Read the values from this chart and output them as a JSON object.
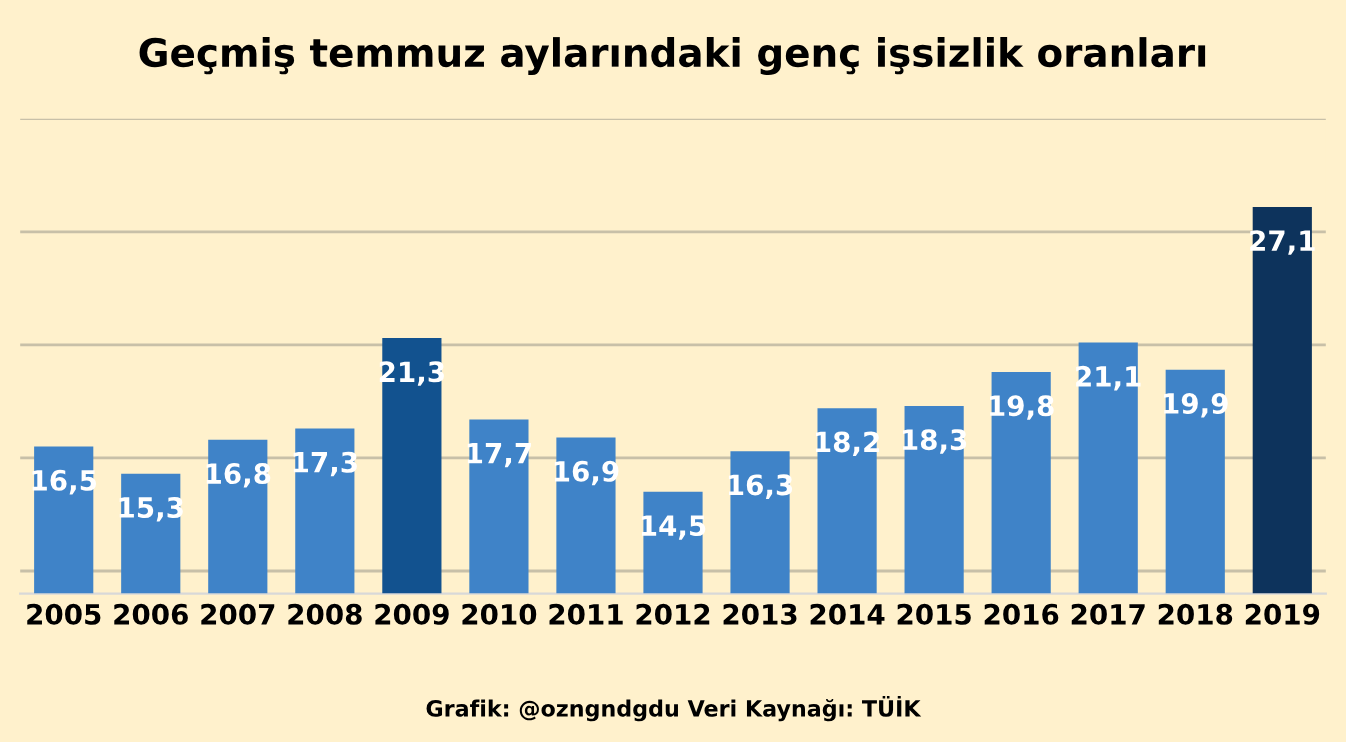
{
  "chart_data": {
    "type": "bar",
    "title": "Geçmiş temmuz aylarındaki genç işsizlik oranları",
    "categories": [
      "2005",
      "2006",
      "2007",
      "2008",
      "2009",
      "2010",
      "2011",
      "2012",
      "2013",
      "2014",
      "2015",
      "2016",
      "2017",
      "2018",
      "2019"
    ],
    "values": [
      16.5,
      15.3,
      16.8,
      17.3,
      21.3,
      17.7,
      16.9,
      14.5,
      16.3,
      18.2,
      18.3,
      19.8,
      21.1,
      19.9,
      27.1
    ],
    "value_labels": [
      "16,5",
      "15,3",
      "16,8",
      "17,3",
      "21,3",
      "17,7",
      "16,9",
      "14,5",
      "16,3",
      "18,2",
      "18,3",
      "19,8",
      "21,1",
      "19,9",
      "27,1"
    ],
    "colors": [
      "#3f83c8",
      "#3f83c8",
      "#3f83c8",
      "#3f83c8",
      "#12528f",
      "#3f83c8",
      "#3f83c8",
      "#3f83c8",
      "#3f83c8",
      "#3f83c8",
      "#3f83c8",
      "#3f83c8",
      "#3f83c8",
      "#3f83c8",
      "#0d335c"
    ],
    "ylim": [
      10,
      31
    ],
    "yticks": [
      {
        "value": 11,
        "label": null
      },
      {
        "value": 16,
        "label": null
      },
      {
        "value": 21,
        "label": null
      },
      {
        "value": 26,
        "label": null
      },
      {
        "value": 31,
        "label": null
      }
    ],
    "grid": "y",
    "tick_labels": "x",
    "legend": false,
    "annotations": [
      "Grafik: @ozngndgdu Veri Kaynağı: TÜİK"
    ]
  }
}
